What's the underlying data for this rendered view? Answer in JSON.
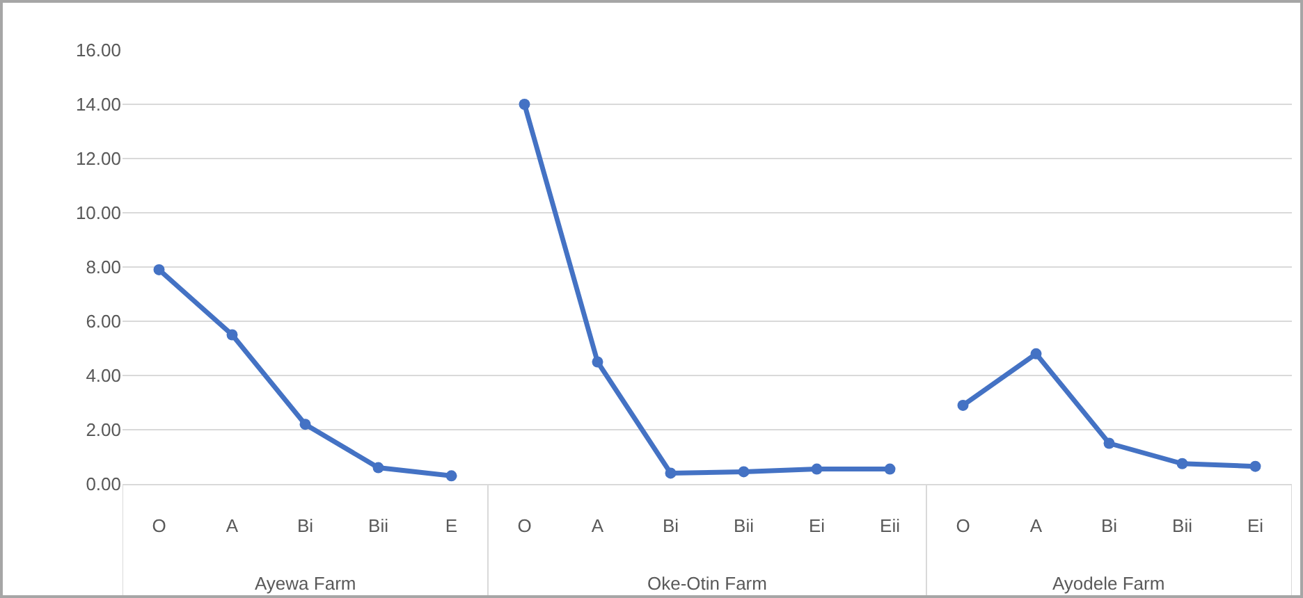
{
  "chart_data": {
    "type": "line",
    "categories": [
      "O",
      "A",
      "Bi",
      "Bii",
      "E",
      "O",
      "A",
      "Bi",
      "Bii",
      "Ei",
      "Eii",
      "O",
      "A",
      "Bi",
      "Bii",
      "Ei"
    ],
    "series": [
      {
        "color": "#4472c4",
        "values": [
          7.9,
          5.5,
          2.2,
          0.6,
          0.3,
          null,
          null,
          null,
          null,
          null,
          null,
          null,
          null,
          null,
          null,
          null
        ]
      },
      {
        "color": "#4472c4",
        "values": [
          null,
          null,
          null,
          null,
          null,
          14.0,
          4.5,
          0.4,
          0.45,
          0.55,
          0.55,
          null,
          null,
          null,
          null,
          null
        ]
      },
      {
        "color": "#4472c4",
        "values": [
          null,
          null,
          null,
          null,
          null,
          null,
          null,
          null,
          null,
          null,
          null,
          2.9,
          4.8,
          1.5,
          0.75,
          0.65
        ]
      }
    ],
    "annotations": [
      "Ayewa Farm",
      "Oke-Otin Farm",
      "Ayodele Farm"
    ],
    "ylim": [
      0,
      16
    ],
    "yticks": [
      {
        "value": 0,
        "label": "0.00"
      },
      {
        "value": 2,
        "label": "2.00"
      },
      {
        "value": 4,
        "label": "4.00"
      },
      {
        "value": 6,
        "label": "6.00"
      },
      {
        "value": 8,
        "label": "8.00"
      },
      {
        "value": 10,
        "label": "10.00"
      },
      {
        "value": 12,
        "label": "12.00"
      },
      {
        "value": 14,
        "label": "14.00"
      },
      {
        "value": 16,
        "label": "16.00"
      }
    ],
    "grid": true,
    "marker": "circle",
    "line_style": "solid"
  }
}
